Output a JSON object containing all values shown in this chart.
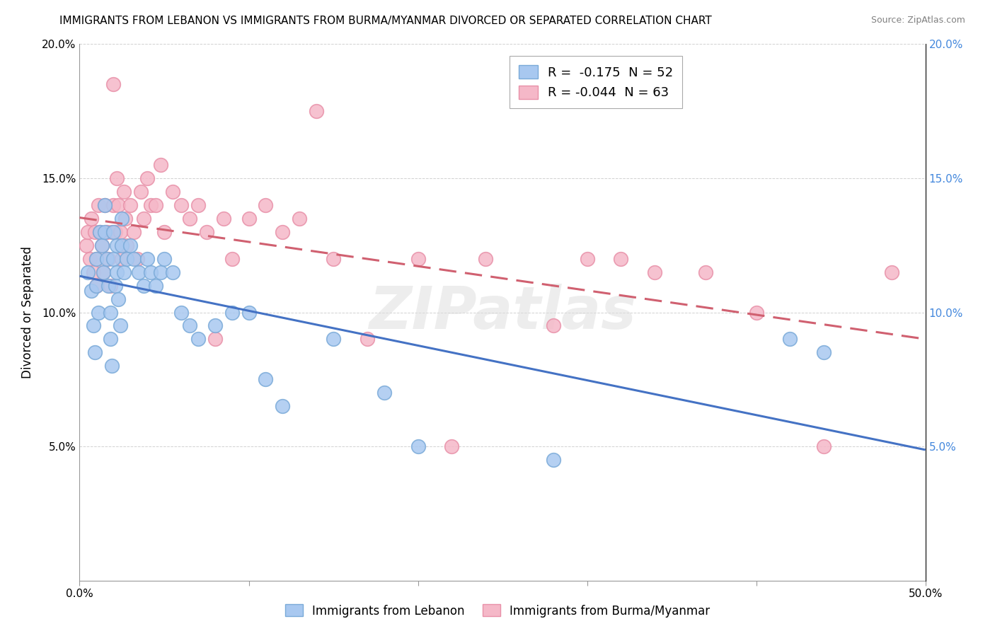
{
  "title": "IMMIGRANTS FROM LEBANON VS IMMIGRANTS FROM BURMA/MYANMAR DIVORCED OR SEPARATED CORRELATION CHART",
  "source": "Source: ZipAtlas.com",
  "ylabel": "Divorced or Separated",
  "legend_blue_label": "Immigrants from Lebanon",
  "legend_pink_label": "Immigrants from Burma/Myanmar",
  "legend_blue_r_val": "-0.175",
  "legend_blue_n": "52",
  "legend_pink_r_val": "-0.044",
  "legend_pink_n": "63",
  "xlim": [
    0,
    0.5
  ],
  "ylim": [
    0,
    0.2
  ],
  "xticks": [
    0.0,
    0.1,
    0.2,
    0.3,
    0.4,
    0.5
  ],
  "yticks": [
    0.0,
    0.05,
    0.1,
    0.15,
    0.2
  ],
  "blue_color": "#A8C8F0",
  "pink_color": "#F5B8C8",
  "blue_edge": "#7AAAD8",
  "pink_edge": "#E890A8",
  "blue_line_color": "#4472C4",
  "pink_line_color": "#D06070",
  "right_axis_color": "#4488DD",
  "watermark": "ZIPatlas",
  "blue_scatter_x": [
    0.005,
    0.007,
    0.008,
    0.009,
    0.01,
    0.01,
    0.011,
    0.012,
    0.013,
    0.014,
    0.015,
    0.015,
    0.016,
    0.017,
    0.018,
    0.018,
    0.019,
    0.02,
    0.02,
    0.021,
    0.022,
    0.022,
    0.023,
    0.024,
    0.025,
    0.025,
    0.026,
    0.028,
    0.03,
    0.032,
    0.035,
    0.038,
    0.04,
    0.042,
    0.045,
    0.048,
    0.05,
    0.055,
    0.06,
    0.065,
    0.07,
    0.08,
    0.09,
    0.1,
    0.11,
    0.12,
    0.15,
    0.18,
    0.2,
    0.28,
    0.42,
    0.44
  ],
  "blue_scatter_y": [
    0.115,
    0.108,
    0.095,
    0.085,
    0.12,
    0.11,
    0.1,
    0.13,
    0.125,
    0.115,
    0.14,
    0.13,
    0.12,
    0.11,
    0.1,
    0.09,
    0.08,
    0.13,
    0.12,
    0.11,
    0.125,
    0.115,
    0.105,
    0.095,
    0.135,
    0.125,
    0.115,
    0.12,
    0.125,
    0.12,
    0.115,
    0.11,
    0.12,
    0.115,
    0.11,
    0.115,
    0.12,
    0.115,
    0.1,
    0.095,
    0.09,
    0.095,
    0.1,
    0.1,
    0.075,
    0.065,
    0.09,
    0.07,
    0.05,
    0.045,
    0.09,
    0.085
  ],
  "pink_scatter_x": [
    0.004,
    0.005,
    0.006,
    0.007,
    0.008,
    0.009,
    0.01,
    0.01,
    0.011,
    0.012,
    0.013,
    0.014,
    0.015,
    0.016,
    0.017,
    0.018,
    0.019,
    0.02,
    0.02,
    0.021,
    0.022,
    0.023,
    0.024,
    0.025,
    0.026,
    0.027,
    0.028,
    0.03,
    0.032,
    0.034,
    0.036,
    0.038,
    0.04,
    0.042,
    0.045,
    0.048,
    0.05,
    0.055,
    0.06,
    0.065,
    0.07,
    0.075,
    0.08,
    0.085,
    0.09,
    0.1,
    0.11,
    0.12,
    0.13,
    0.14,
    0.15,
    0.17,
    0.2,
    0.22,
    0.24,
    0.28,
    0.3,
    0.32,
    0.34,
    0.37,
    0.4,
    0.44,
    0.48
  ],
  "pink_scatter_y": [
    0.125,
    0.13,
    0.12,
    0.135,
    0.115,
    0.13,
    0.12,
    0.11,
    0.14,
    0.13,
    0.125,
    0.115,
    0.14,
    0.13,
    0.12,
    0.11,
    0.13,
    0.185,
    0.14,
    0.13,
    0.15,
    0.14,
    0.13,
    0.12,
    0.145,
    0.135,
    0.125,
    0.14,
    0.13,
    0.12,
    0.145,
    0.135,
    0.15,
    0.14,
    0.14,
    0.155,
    0.13,
    0.145,
    0.14,
    0.135,
    0.14,
    0.13,
    0.09,
    0.135,
    0.12,
    0.135,
    0.14,
    0.13,
    0.135,
    0.175,
    0.12,
    0.09,
    0.12,
    0.05,
    0.12,
    0.095,
    0.12,
    0.12,
    0.115,
    0.115,
    0.1,
    0.05,
    0.115
  ]
}
